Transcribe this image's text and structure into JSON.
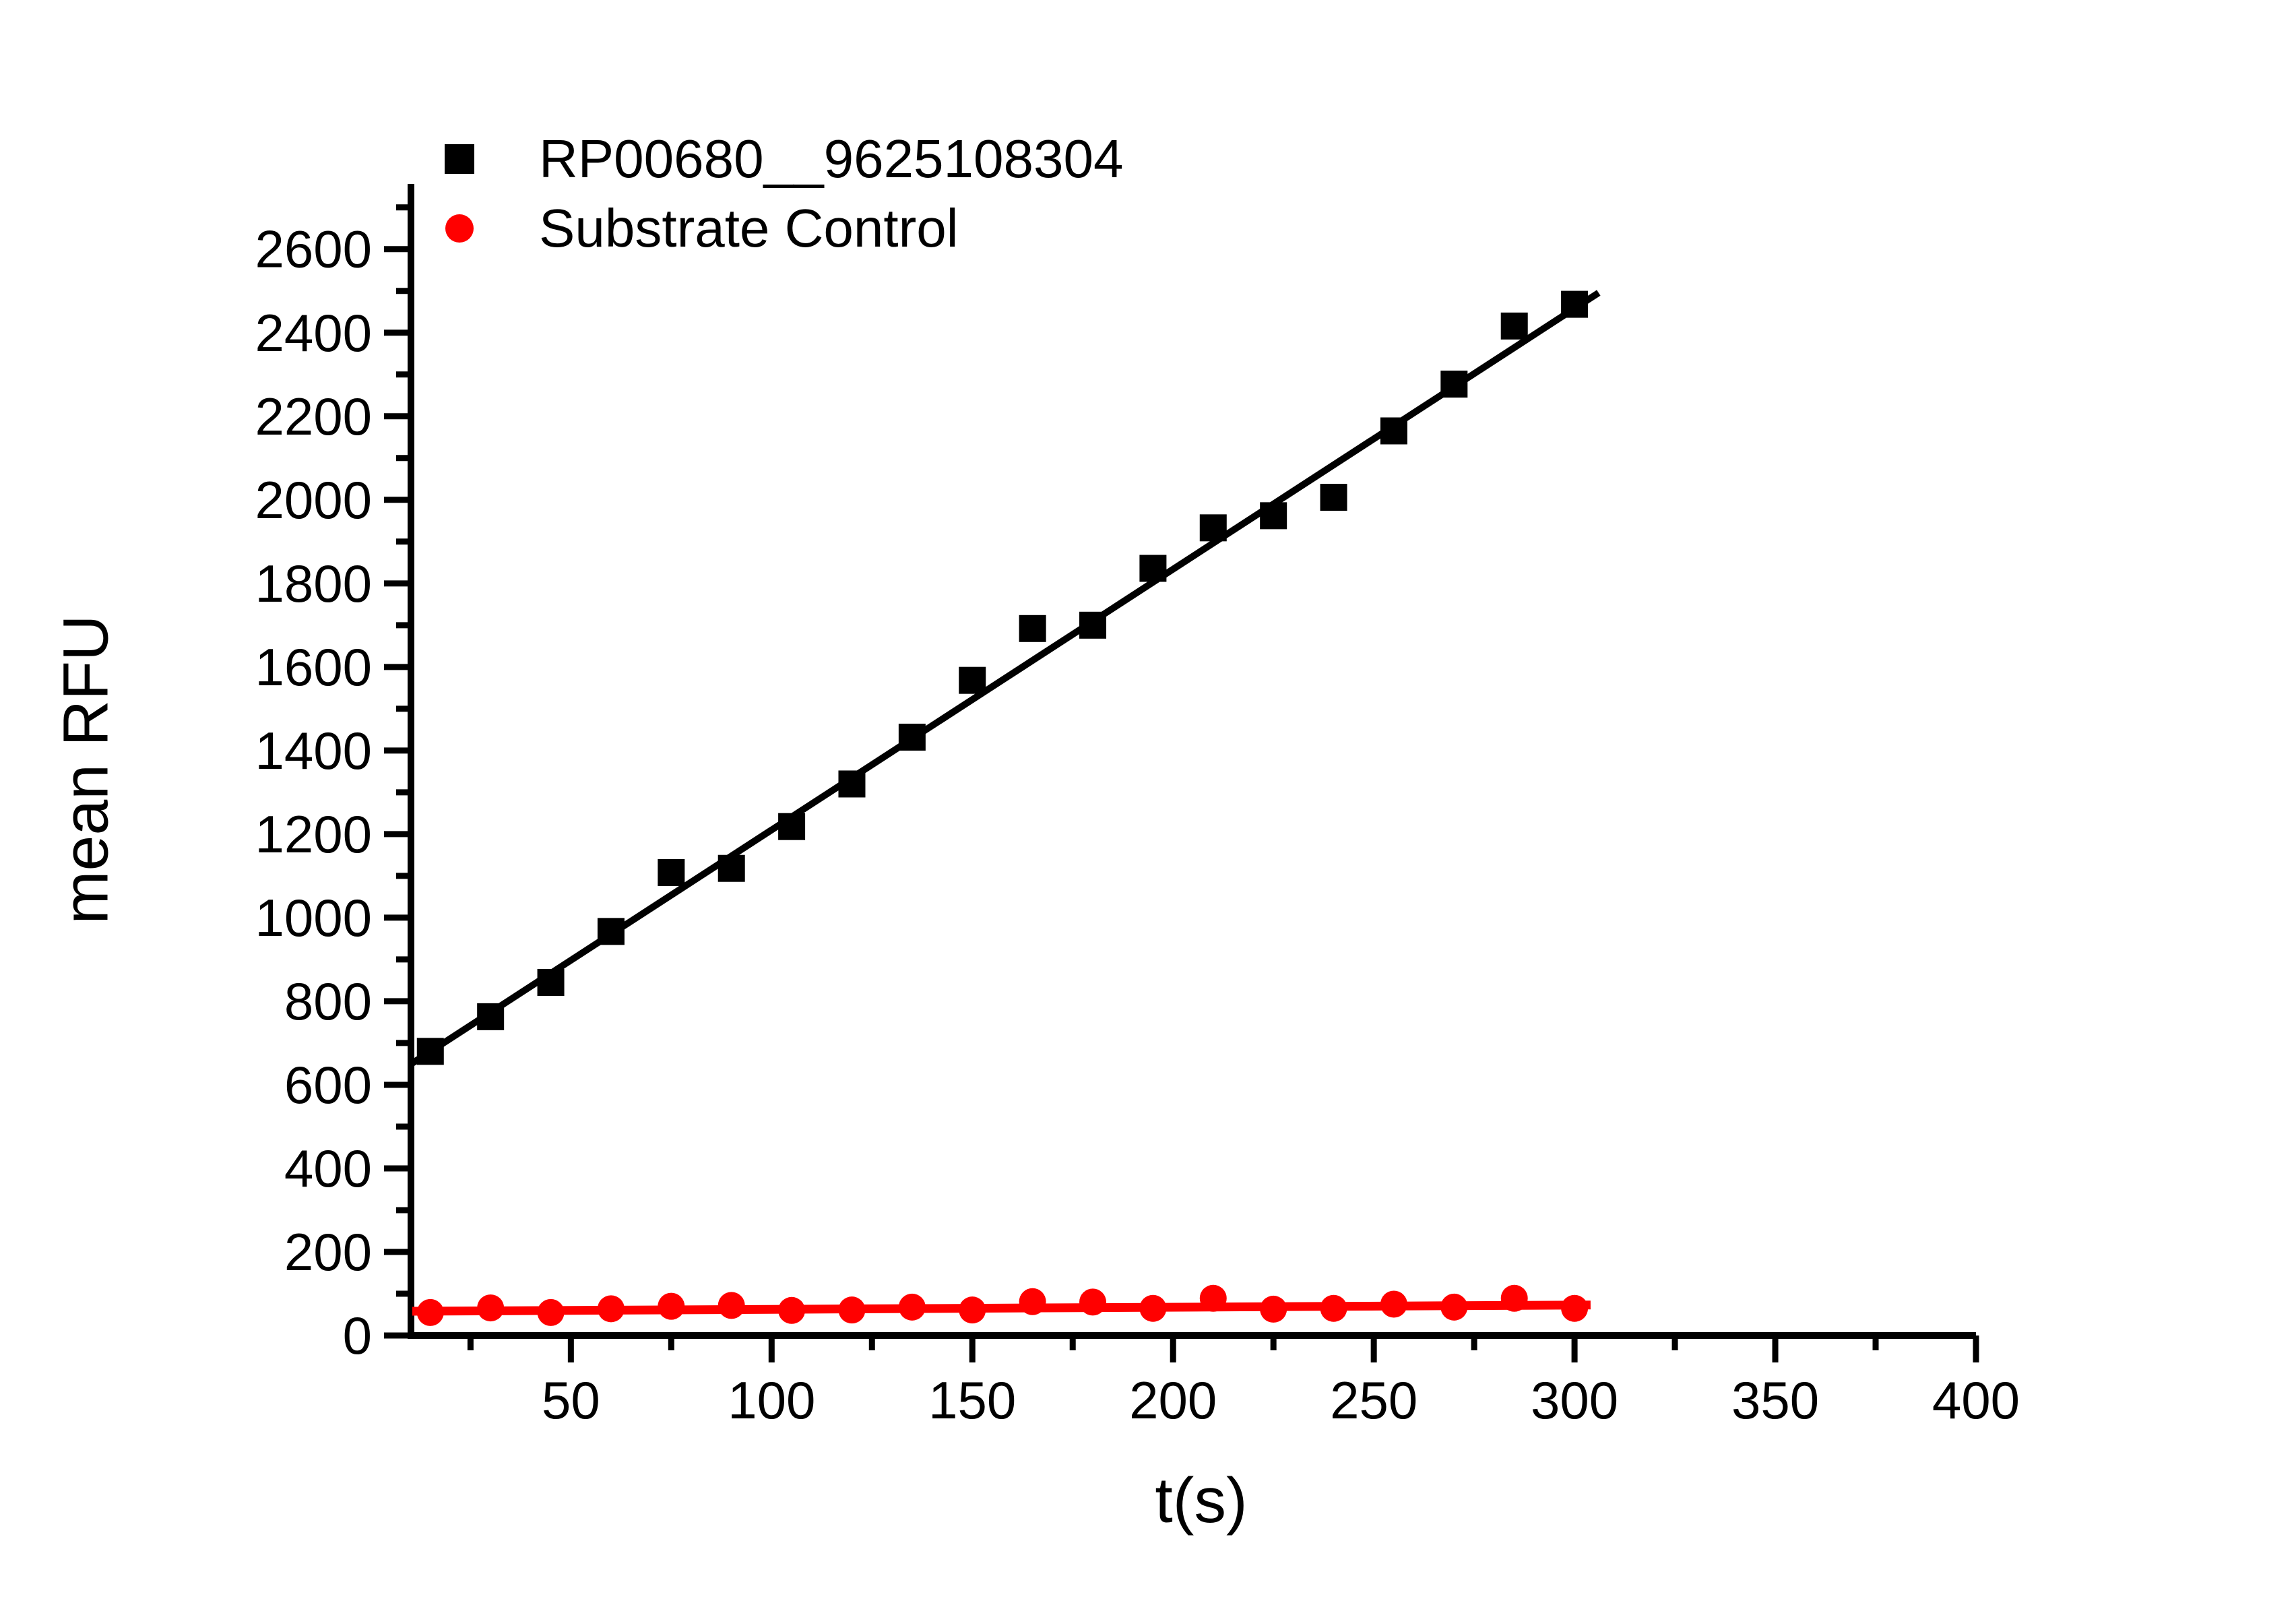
{
  "chart_data": {
    "type": "scatter",
    "title": "",
    "xlabel": "t(s)",
    "ylabel": "mean RFU",
    "x_range": [
      10,
      400
    ],
    "y_range": [
      0,
      2756
    ],
    "x_major_ticks": [
      50,
      100,
      150,
      200,
      250,
      300,
      350,
      400
    ],
    "x_minor_ticks": [
      25,
      75,
      125,
      175,
      225,
      275,
      325,
      375
    ],
    "y_major_ticks": [
      0,
      200,
      400,
      600,
      800,
      1000,
      1200,
      1400,
      1600,
      1800,
      2000,
      2200,
      2400,
      2600
    ],
    "y_minor_ticks": [
      100,
      300,
      500,
      700,
      900,
      1100,
      1300,
      1500,
      1700,
      1900,
      2100,
      2300,
      2500,
      2700
    ],
    "grid": false,
    "legend_position": "top-left-inside",
    "x": [
      15,
      30,
      45,
      60,
      75,
      90,
      105,
      120,
      135,
      150,
      165,
      180,
      195,
      210,
      225,
      240,
      255,
      270,
      285,
      300
    ],
    "series": [
      {
        "name": "RP00680__9625108304",
        "marker": "square",
        "color": "#000000",
        "values": [
          680,
          763,
          845,
          967,
          1108,
          1118,
          1218,
          1320,
          1432,
          1568,
          1692,
          1700,
          1836,
          1933,
          1962,
          2006,
          2165,
          2277,
          2416,
          2468
        ],
        "fit_line": {
          "slope": 6.24,
          "intercept": 586,
          "t_start": 10.5,
          "t_end": 306
        }
      },
      {
        "name": "Substrate Control",
        "marker": "circle",
        "color": "#ff0000",
        "values": [
          55,
          66,
          55,
          64,
          70,
          72,
          60,
          61,
          68,
          61,
          81,
          80,
          65,
          89,
          63,
          65,
          75,
          68,
          89,
          65
        ],
        "fit_line": {
          "slope": 0.051,
          "intercept": 57.5,
          "t_start": 10.5,
          "t_end": 304
        }
      }
    ]
  }
}
